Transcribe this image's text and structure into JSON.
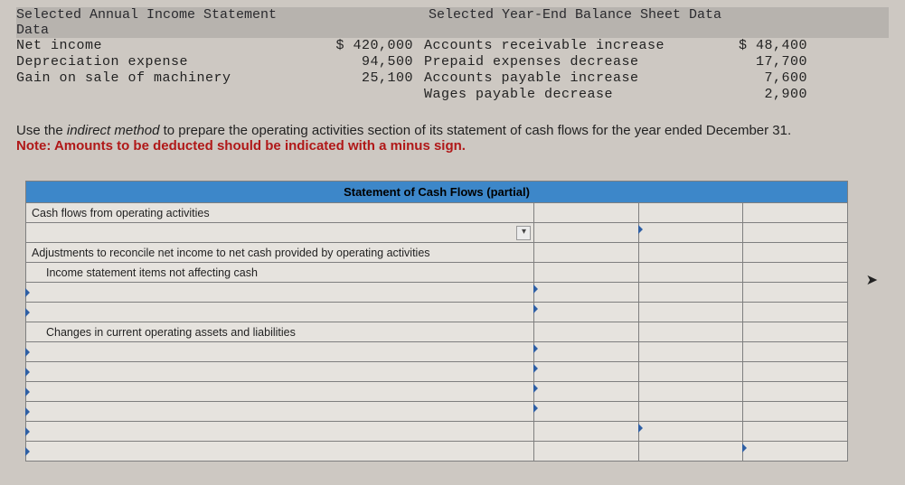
{
  "income_header": "Selected Annual Income Statement Data",
  "balance_header": "Selected Year-End Balance Sheet Data",
  "income_rows": [
    {
      "label": "Net income",
      "amount": "$ 420,000"
    },
    {
      "label": "Depreciation expense",
      "amount": "94,500"
    },
    {
      "label": "Gain on sale of machinery",
      "amount": "25,100"
    }
  ],
  "balance_rows": [
    {
      "label": "Accounts receivable increase",
      "amount": "$ 48,400"
    },
    {
      "label": "Prepaid expenses decrease",
      "amount": "17,700"
    },
    {
      "label": "Accounts payable increase",
      "amount": "7,600"
    },
    {
      "label": "Wages payable decrease",
      "amount": "2,900"
    }
  ],
  "instr": {
    "l1a": "Use the ",
    "l1b": "indirect method",
    "l1c": " to prepare the operating activities section of its statement of cash flows for the year ended December 31.",
    "l2": "Note: Amounts to be deducted should be indicated with a minus sign."
  },
  "ws": {
    "title": "Statement of Cash Flows (partial)",
    "r1": "Cash flows from operating activities",
    "r3": "Adjustments to reconcile net income to net cash provided by operating activities",
    "r4": "Income statement items not affecting cash",
    "r7": "Changes in current operating assets and liabilities"
  },
  "style": {
    "title_bg": "#3d87c9",
    "note_color": "#b01818",
    "border_color": "#7f7f7f",
    "tick_color": "#2e5fa4",
    "background": "#cdc8c2"
  }
}
